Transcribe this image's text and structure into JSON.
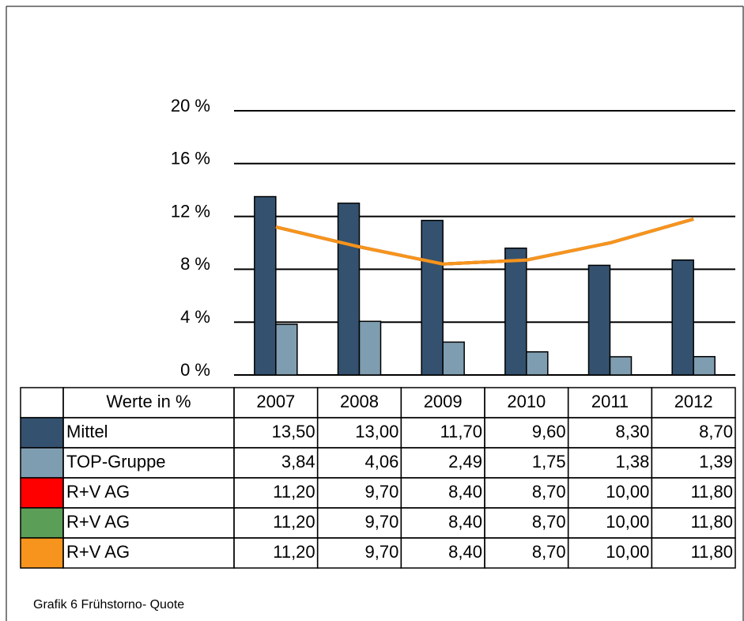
{
  "chart_data": {
    "type": "bar",
    "ylim": [
      0,
      20
    ],
    "yticks": [
      {
        "value": 0,
        "label": "0 %"
      },
      {
        "value": 4,
        "label": "4 %"
      },
      {
        "value": 8,
        "label": "8 %"
      },
      {
        "value": 12,
        "label": "12 %"
      },
      {
        "value": 16,
        "label": "16 %"
      },
      {
        "value": 20,
        "label": "20 %"
      }
    ],
    "grid": true,
    "table_header": "Werte in %",
    "categories": [
      "2007",
      "2008",
      "2009",
      "2010",
      "2011",
      "2012"
    ],
    "series": [
      {
        "name": "Mittel",
        "type": "bar",
        "color": "#34526f",
        "values": [
          13.5,
          13.0,
          11.7,
          9.6,
          8.3,
          8.7
        ],
        "value_labels": [
          "13,50",
          "13,00",
          "11,70",
          "9,60",
          "8,30",
          "8,70"
        ]
      },
      {
        "name": "TOP-Gruppe",
        "type": "bar",
        "color": "#7f9db0",
        "values": [
          3.84,
          4.06,
          2.49,
          1.75,
          1.38,
          1.39
        ],
        "value_labels": [
          "3,84",
          "4,06",
          "2,49",
          "1,75",
          "1,38",
          "1,39"
        ]
      },
      {
        "name": "R+V AG",
        "type": "line",
        "color": "#ff0000",
        "values": [
          11.2,
          9.7,
          8.4,
          8.7,
          10.0,
          11.8
        ],
        "value_labels": [
          "11,20",
          "9,70",
          "8,40",
          "8,70",
          "10,00",
          "11,80"
        ]
      },
      {
        "name": "R+V AG",
        "type": "line",
        "color": "#5b9e57",
        "values": [
          11.2,
          9.7,
          8.4,
          8.7,
          10.0,
          11.8
        ],
        "value_labels": [
          "11,20",
          "9,70",
          "8,40",
          "8,70",
          "10,00",
          "11,80"
        ]
      },
      {
        "name": "R+V AG",
        "type": "line",
        "color": "#f7941d",
        "values": [
          11.2,
          9.7,
          8.4,
          8.7,
          10.0,
          11.8
        ],
        "value_labels": [
          "11,20",
          "9,70",
          "8,40",
          "8,70",
          "10,00",
          "11,80"
        ]
      }
    ],
    "caption": "Grafik 6 Frühstorno- Quote"
  }
}
